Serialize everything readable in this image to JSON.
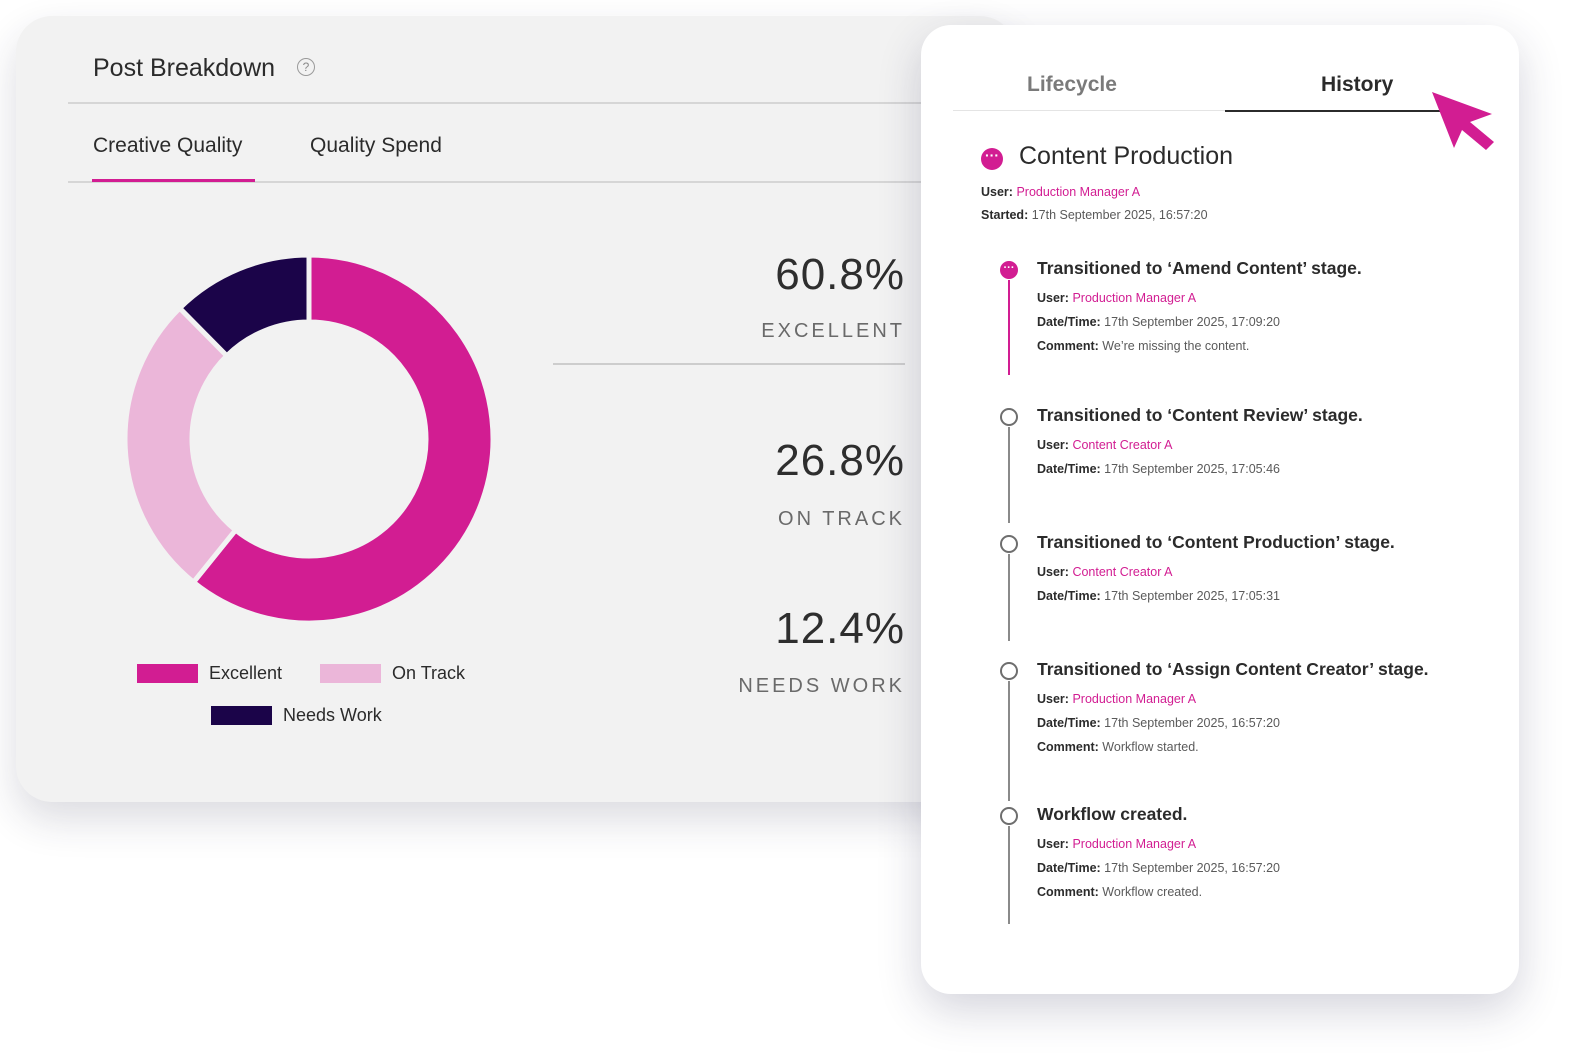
{
  "breakdown": {
    "title": "Post Breakdown",
    "help_icon": "question-circle-icon",
    "tabs": [
      {
        "label": "Creative Quality",
        "active": true
      },
      {
        "label": "Quality Spend",
        "active": false
      }
    ],
    "stats": [
      {
        "value": "60.8%",
        "label": "EXCELLENT"
      },
      {
        "value": "26.8%",
        "label": "ON TRACK"
      },
      {
        "value": "12.4%",
        "label": "NEEDS WORK"
      }
    ],
    "legend": [
      {
        "label": "Excellent",
        "color": "#d21d92"
      },
      {
        "label": "On Track",
        "color": "#ebb6d9"
      },
      {
        "label": "Needs Work",
        "color": "#1b0449"
      }
    ]
  },
  "chart_data": {
    "type": "pie",
    "title": "Post Breakdown",
    "categories": [
      "Excellent",
      "On Track",
      "Needs Work"
    ],
    "values": [
      60.8,
      26.8,
      12.4
    ],
    "colors": [
      "#d21d92",
      "#ebb6d9",
      "#1b0449"
    ],
    "donut": true,
    "legend": "bottom"
  },
  "history": {
    "tabs": [
      {
        "label": "Lifecycle",
        "active": false
      },
      {
        "label": "History",
        "active": true
      }
    ],
    "header": {
      "title": "Content Production",
      "user_label": "User:",
      "user": "Production Manager A",
      "started_label": "Started:",
      "started": "17th September 2025, 16:57:20"
    },
    "events": [
      {
        "title": "Transitioned to ‘Amend Content’ stage.",
        "user": "Production Manager A",
        "datetime": "17th September 2025, 17:09:20",
        "comment": "We’re missing the content.",
        "active": true
      },
      {
        "title": "Transitioned to ‘Content Review’ stage.",
        "user": "Content Creator A",
        "datetime": "17th September 2025, 17:05:46",
        "comment": null,
        "active": false
      },
      {
        "title": "Transitioned to ‘Content Production’ stage.",
        "user": "Content Creator A",
        "datetime": "17th September 2025, 17:05:31",
        "comment": null,
        "active": false
      },
      {
        "title": "Transitioned to ‘Assign Content Creator’ stage.",
        "user": "Production Manager A",
        "datetime": "17th September 2025, 16:57:20",
        "comment": "Workflow started.",
        "active": false
      },
      {
        "title": "Workflow created.",
        "user": "Production Manager A",
        "datetime": "17th September 2025, 16:57:20",
        "comment": "Workflow created.",
        "active": false
      }
    ],
    "labels": {
      "user": "User:",
      "datetime": "Date/Time:",
      "comment": "Comment:"
    }
  },
  "cursor_icon": "pointer-cursor-icon",
  "accent_color": "#d21d92"
}
